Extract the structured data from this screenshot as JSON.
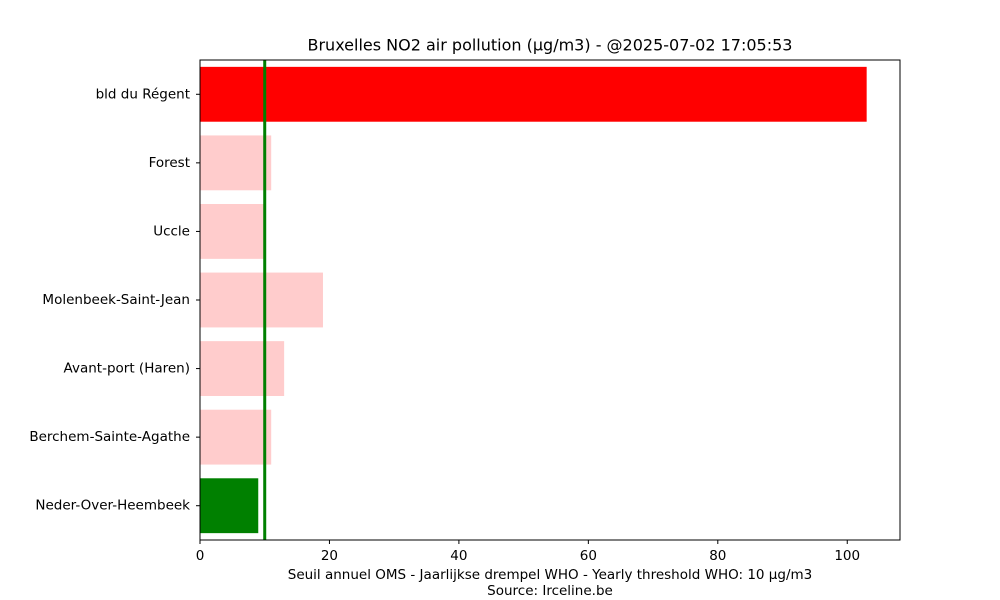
{
  "chart_data": {
    "type": "barh",
    "title": "Bruxelles NO2 air pollution (µg/m3) - @2025-07-02 17:05:53",
    "xlabel": [
      "Seuil annuel OMS - Jaarlijkse drempel WHO - Yearly threshold WHO: 10 µg/m3",
      "Source: Irceline.be"
    ],
    "categories": [
      "bld du Régent",
      "Forest",
      "Uccle",
      "Molenbeek-Saint-Jean",
      "Avant-port (Haren)",
      "Berchem-Sainte-Agathe",
      "Neder-Over-Heembeek"
    ],
    "values": [
      103,
      11,
      10,
      19,
      13,
      11,
      9
    ],
    "colors": [
      "#ff0000",
      "#ffcccc",
      "#ffcccc",
      "#ffcccc",
      "#ffcccc",
      "#ffcccc",
      "#008000"
    ],
    "threshold": 10,
    "threshold_color": "#008000",
    "xlim": [
      0,
      108.15
    ],
    "xticks": [
      0,
      20,
      40,
      60,
      80,
      100
    ]
  }
}
